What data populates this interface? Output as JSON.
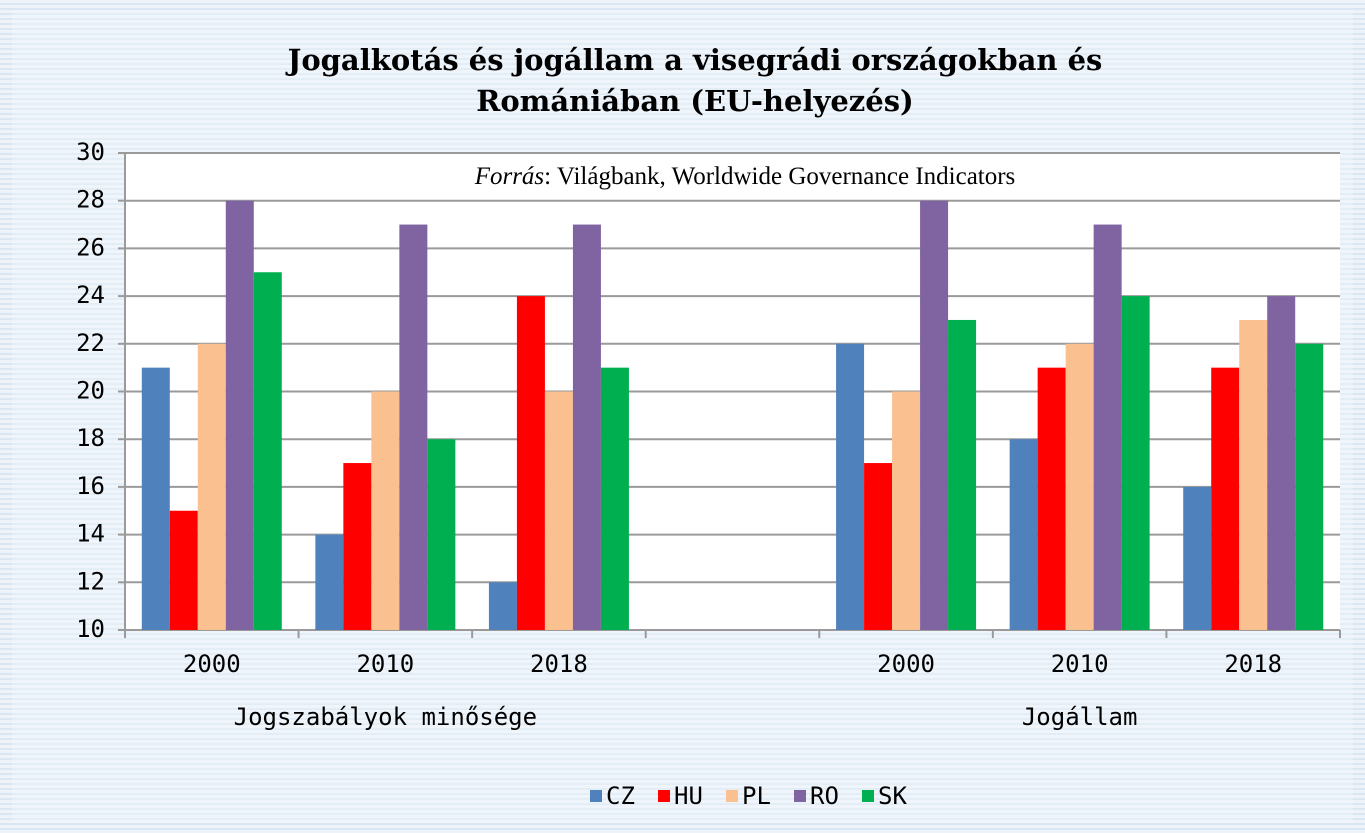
{
  "chart_data": {
    "type": "bar",
    "title": [
      "Jogalkotás és jogállam a visegrádi országokban és",
      "Romániában (EU-helyezés)"
    ],
    "annotation": {
      "italic": "Forrás",
      "text": ": Világbank,  Worldwide Governance Indicators"
    },
    "categories": [
      "2000",
      "2010",
      "2018",
      null,
      "2000",
      "2010",
      "2018"
    ],
    "group_labels": [
      "Jogszabályok minősége",
      "Jogállam"
    ],
    "series": [
      {
        "name": "CZ",
        "color": "#4f81bd",
        "values": [
          21,
          14,
          12,
          null,
          22,
          18,
          16
        ]
      },
      {
        "name": "HU",
        "color": "#ff0000",
        "values": [
          15,
          17,
          24,
          null,
          17,
          21,
          21
        ]
      },
      {
        "name": "PL",
        "color": "#fac090",
        "values": [
          22,
          20,
          20,
          null,
          20,
          22,
          23
        ]
      },
      {
        "name": "RO",
        "color": "#8064a2",
        "values": [
          28,
          27,
          27,
          null,
          28,
          27,
          24
        ]
      },
      {
        "name": "SK",
        "color": "#00b050",
        "values": [
          25,
          18,
          21,
          null,
          23,
          24,
          22
        ]
      }
    ],
    "ylim": [
      10,
      30
    ],
    "yticks": [
      10,
      12,
      14,
      16,
      18,
      20,
      22,
      24,
      26,
      28,
      30
    ],
    "grid": true,
    "legend": "bottom"
  }
}
